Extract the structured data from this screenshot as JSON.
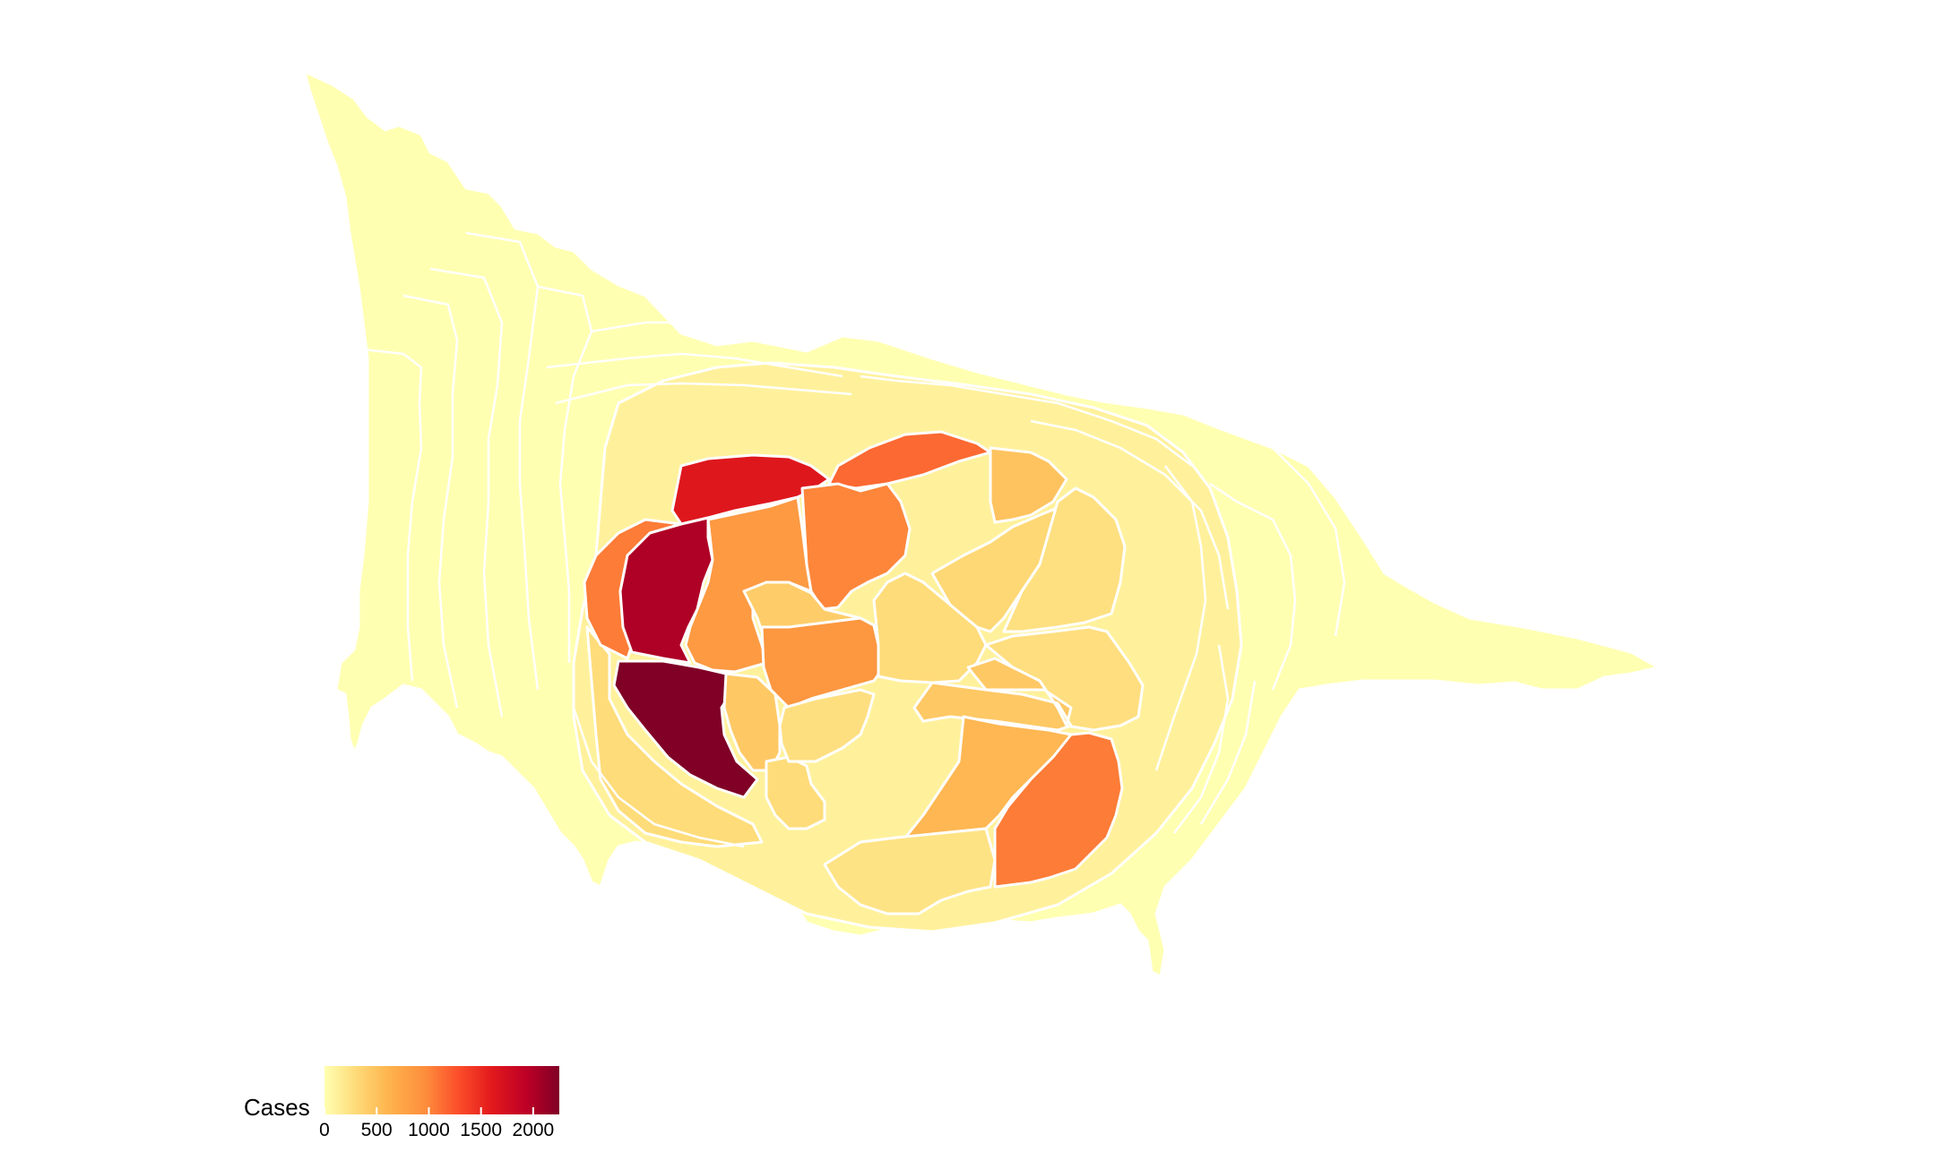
{
  "legend": {
    "title": "Cases",
    "min": 0,
    "max": 2250,
    "ticks": [
      "0",
      "500",
      "1000",
      "1500",
      "2000"
    ],
    "tick_values": [
      0,
      500,
      1000,
      1500,
      2000
    ],
    "color_stops": [
      "#FFFFB2",
      "#FED976",
      "#FEB24C",
      "#FD8D3C",
      "#FC4E2A",
      "#E31A1C",
      "#BD0026",
      "#800026"
    ]
  },
  "regions": [
    {
      "id": "outer-band",
      "cases": 0
    },
    {
      "id": "mid-band",
      "cases": 120
    },
    {
      "id": "left-arc",
      "cases": 300
    },
    {
      "id": "northwest-core",
      "cases": 1650
    },
    {
      "id": "north-east-core",
      "cases": 1150
    },
    {
      "id": "left-orange",
      "cases": 1050
    },
    {
      "id": "west-core",
      "cases": 2000
    },
    {
      "id": "southwest-core",
      "cases": 2250
    },
    {
      "id": "central-a",
      "cases": 850
    },
    {
      "id": "central-b",
      "cases": 1000
    },
    {
      "id": "central-c",
      "cases": 420
    },
    {
      "id": "central-d",
      "cases": 880
    },
    {
      "id": "south-central",
      "cases": 450
    },
    {
      "id": "south-small",
      "cases": 300
    },
    {
      "id": "east-a",
      "cases": 500
    },
    {
      "id": "east-b",
      "cases": 330
    },
    {
      "id": "east-c",
      "cases": 260
    },
    {
      "id": "east-d",
      "cases": 280
    },
    {
      "id": "east-e",
      "cases": 460
    },
    {
      "id": "southeast-a",
      "cases": 600
    },
    {
      "id": "southeast-b",
      "cases": 1050
    },
    {
      "id": "south-bottom",
      "cases": 240
    },
    {
      "id": "central-e",
      "cases": 270
    },
    {
      "id": "central-f",
      "cases": 300
    }
  ]
}
